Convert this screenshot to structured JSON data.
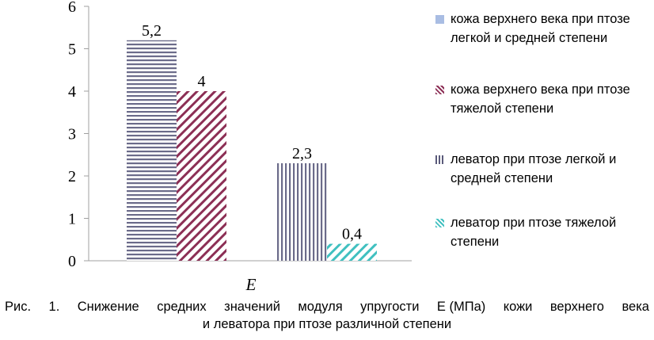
{
  "chart_data": {
    "type": "bar",
    "categories": [
      "",
      ""
    ],
    "xlabel": "E",
    "ylabel": "",
    "ylim": [
      0,
      6
    ],
    "yticks": [
      0,
      1,
      2,
      3,
      4,
      5,
      6
    ],
    "grid": false,
    "legend_position": "right",
    "series": [
      {
        "name": "кожа верхнего века при птозе легкой и средней степени",
        "values": [
          5.2,
          null
        ],
        "labels": [
          "5,2",
          ""
        ],
        "color": "#6b6b8a",
        "pattern": "horizontal-lines"
      },
      {
        "name": "кожа верхнего века при птозе тяжелой степени",
        "values": [
          4,
          null
        ],
        "labels": [
          "4",
          ""
        ],
        "color": "#8c2f55",
        "pattern": "diagonal-lines"
      },
      {
        "name": "леватор при птозе легкой и средней степени",
        "values": [
          null,
          2.3
        ],
        "labels": [
          "",
          "2,3"
        ],
        "color": "#6b6b8a",
        "pattern": "vertical-lines"
      },
      {
        "name": "леватор при птозе тяжелой степени",
        "values": [
          null,
          0.4
        ],
        "labels": [
          "",
          "0,4"
        ],
        "color": "#40c0c0",
        "pattern": "diagonal-lines"
      }
    ],
    "legend_swatch_colors": [
      "#a9bde3",
      "#8c2f55",
      "#5a5a7a",
      "#40c0c0"
    ]
  },
  "caption": {
    "line1": [
      "Рис.",
      "1.",
      "Снижение",
      "средних",
      "значений",
      "модуля",
      "упругости",
      "E (МПа)",
      "кожи",
      "верхнего",
      "века"
    ],
    "line2": "и леватора при птозе различной степени"
  }
}
